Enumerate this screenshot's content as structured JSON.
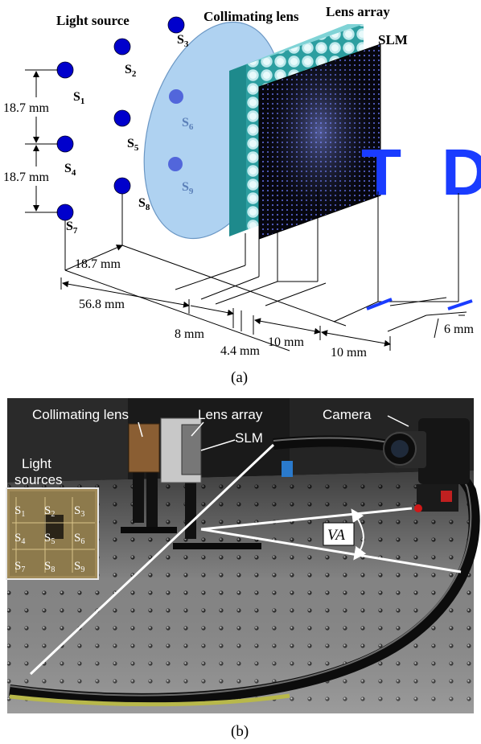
{
  "panel_a": {
    "caption": "(a)",
    "headers": {
      "light_source": "Light source",
      "collimating_lens": "Collimating lens",
      "lens_array": "Lens array",
      "slm": "SLM"
    },
    "sources": [
      "S1",
      "S2",
      "S3",
      "S4",
      "S5",
      "S6",
      "S7",
      "S8",
      "S9"
    ],
    "targets": [
      "T",
      "D"
    ],
    "dimensions": {
      "d_s1_s4": "18.7 mm",
      "d_s4_s7": "18.7 mm",
      "d_s7_s8": "18.7 mm",
      "d_source_lens": "56.8 mm",
      "d_lens_array": "8 mm",
      "d_array_slm": "4.4 mm",
      "d_slm_t": "10 mm",
      "d_t_d": "10 mm",
      "d_lateral": "6 mm"
    },
    "colors": {
      "source": "#0000cc",
      "lens": "#9ec5ea",
      "target": "#1a3cff",
      "slm": "#0a0a14"
    }
  },
  "panel_b": {
    "caption": "(b)",
    "labels": {
      "collimating_lens": "Collimating lens",
      "lens_array": "Lens array",
      "slm": "SLM",
      "camera": "Camera",
      "light_sources": "Light\nsources",
      "va": "VA"
    },
    "inset_sources": [
      "S1",
      "S2",
      "S3",
      "S4",
      "S5",
      "S6",
      "S7",
      "S8",
      "S9"
    ]
  }
}
